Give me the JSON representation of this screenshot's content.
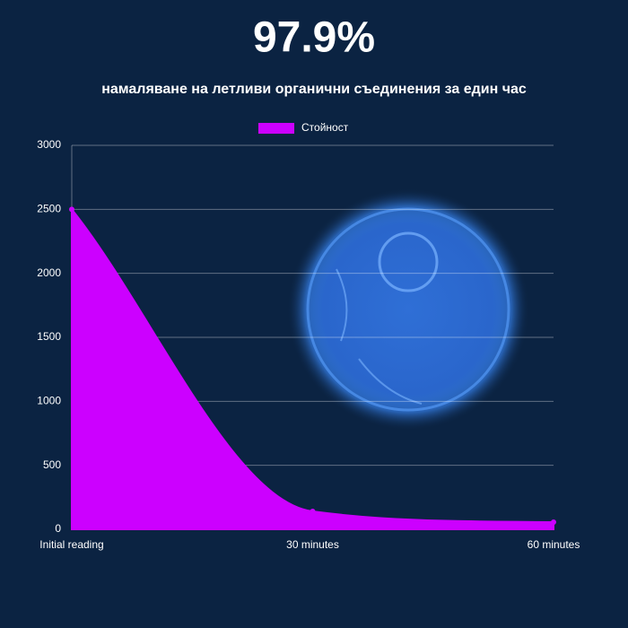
{
  "chart_data": {
    "type": "area",
    "title": "97.9%",
    "subtitle": "намаляване на летливи органични съединения за един час",
    "categories": [
      "Initial reading",
      "30 minutes",
      "60 minutes"
    ],
    "series": [
      {
        "name": "Стойност",
        "color": "#cc00ff",
        "values": [
          2500,
          140,
          56
        ]
      }
    ],
    "ylim": [
      0,
      3000
    ],
    "yticks": [
      0,
      500,
      1000,
      1500,
      2000,
      2500,
      3000
    ],
    "grid": true,
    "legend": "top"
  }
}
